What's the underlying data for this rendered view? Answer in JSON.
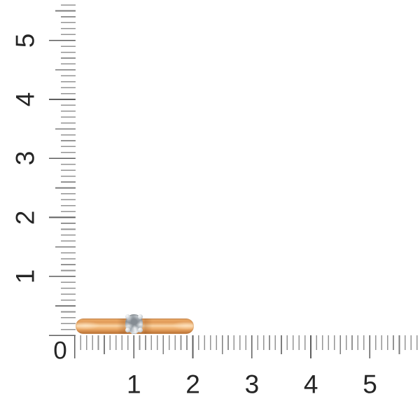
{
  "ruler": {
    "origin_label": "0",
    "vertical_labels": [
      "1",
      "2",
      "3",
      "4",
      "5"
    ],
    "horizontal_labels": [
      "1",
      "2",
      "3",
      "4",
      "5"
    ]
  },
  "colors": {
    "tick-minor": "#949494",
    "tick-half": "#7d7d7d",
    "tick-major": "#5e5e5e",
    "digit": "#252525",
    "bg": "#ffffff",
    "gold-hi": "#f9d4a6",
    "gold-mid": "#e8a462",
    "gold-deep": "#c17a3c",
    "metal-white": "#e9ecee",
    "stone-gray": "#aab1b8"
  }
}
